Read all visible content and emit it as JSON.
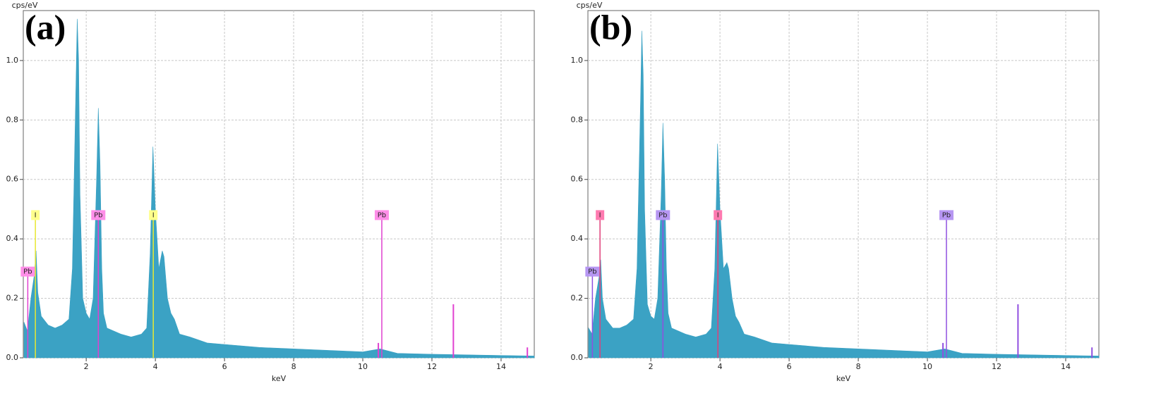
{
  "chart_data": [
    {
      "type": "area",
      "panel_label": "(a)",
      "y_label": "cps/eV",
      "x_label": "keV",
      "color": "#3ba2c4",
      "grid": true,
      "xlim": [
        0.18,
        14.96
      ],
      "ylim": [
        0,
        1.168
      ],
      "xticks": [
        2,
        4,
        6,
        8,
        10,
        12,
        14
      ],
      "yticks": [
        {
          "value": 0,
          "label": "0.0"
        },
        0.2,
        0.4,
        0.6,
        0.8,
        {
          "value": 1,
          "label": "1.0"
        }
      ],
      "x": [
        0.2,
        0.3,
        0.4,
        0.5,
        0.55,
        0.6,
        0.7,
        0.9,
        1.1,
        1.3,
        1.5,
        1.6,
        1.7,
        1.74,
        1.78,
        1.82,
        1.9,
        2.0,
        2.1,
        2.2,
        2.3,
        2.35,
        2.4,
        2.45,
        2.5,
        2.6,
        2.8,
        3.0,
        3.3,
        3.6,
        3.75,
        3.85,
        3.93,
        4.0,
        4.1,
        4.2,
        4.25,
        4.35,
        4.45,
        4.55,
        4.7,
        5.0,
        5.5,
        6,
        7,
        8,
        9,
        10,
        10.5,
        11,
        12,
        13,
        14,
        15
      ],
      "values": [
        0.12,
        0.09,
        0.2,
        0.28,
        0.36,
        0.22,
        0.14,
        0.11,
        0.1,
        0.11,
        0.13,
        0.3,
        0.9,
        1.14,
        1.0,
        0.55,
        0.2,
        0.15,
        0.13,
        0.2,
        0.6,
        0.84,
        0.65,
        0.3,
        0.15,
        0.1,
        0.09,
        0.08,
        0.07,
        0.08,
        0.1,
        0.35,
        0.71,
        0.5,
        0.3,
        0.36,
        0.34,
        0.2,
        0.15,
        0.13,
        0.08,
        0.07,
        0.05,
        0.045,
        0.035,
        0.03,
        0.025,
        0.02,
        0.03,
        0.015,
        0.012,
        0.01,
        0.008,
        0.006
      ],
      "markers": [
        {
          "label": "Pb",
          "energy": 0.31,
          "height": 0.29,
          "color": "#e040d0",
          "box_color": "#ff8ee8"
        },
        {
          "label": "I",
          "energy": 0.53,
          "height": 0.48,
          "color": "#e8e830",
          "box_color": "#ffff8c"
        },
        {
          "label": "Pb",
          "energy": 2.35,
          "height": 0.48,
          "color": "#e040d0",
          "box_color": "#ff8ee8"
        },
        {
          "label": "I",
          "energy": 3.94,
          "height": 0.48,
          "color": "#e8e830",
          "box_color": "#ffff8c"
        },
        {
          "label": "Pb",
          "energy": 10.55,
          "height": 0.48,
          "color": "#e040d0",
          "box_color": "#ff8ee8"
        }
      ],
      "minor_lines": {
        "color": "#e040d0",
        "energy": [
          10.45,
          12.62,
          14.76
        ],
        "height": [
          0.05,
          0.18,
          0.035
        ]
      }
    },
    {
      "type": "area",
      "panel_label": "(b)",
      "y_label": "cps/eV",
      "x_label": "keV",
      "color": "#3ba2c4",
      "grid": true,
      "xlim": [
        0.18,
        14.96
      ],
      "ylim": [
        0,
        1.168
      ],
      "xticks": [
        2,
        4,
        6,
        8,
        10,
        12,
        14
      ],
      "yticks": [
        {
          "value": 0,
          "label": "0.0"
        },
        0.2,
        0.4,
        0.6,
        0.8,
        {
          "value": 1,
          "label": "1.0"
        }
      ],
      "x": [
        0.2,
        0.3,
        0.4,
        0.5,
        0.55,
        0.6,
        0.7,
        0.9,
        1.1,
        1.3,
        1.5,
        1.6,
        1.7,
        1.74,
        1.78,
        1.82,
        1.9,
        2.0,
        2.1,
        2.2,
        2.3,
        2.35,
        2.4,
        2.45,
        2.5,
        2.6,
        2.8,
        3.0,
        3.3,
        3.6,
        3.75,
        3.85,
        3.93,
        4.0,
        4.1,
        4.2,
        4.25,
        4.35,
        4.45,
        4.55,
        4.7,
        5.0,
        5.5,
        6,
        7,
        8,
        9,
        10,
        10.5,
        11,
        12,
        13,
        14,
        15
      ],
      "values": [
        0.1,
        0.08,
        0.2,
        0.27,
        0.33,
        0.2,
        0.13,
        0.1,
        0.1,
        0.11,
        0.13,
        0.3,
        0.85,
        1.1,
        0.95,
        0.5,
        0.18,
        0.14,
        0.13,
        0.2,
        0.55,
        0.79,
        0.6,
        0.3,
        0.15,
        0.1,
        0.09,
        0.08,
        0.07,
        0.08,
        0.1,
        0.3,
        0.72,
        0.5,
        0.3,
        0.32,
        0.3,
        0.2,
        0.14,
        0.12,
        0.08,
        0.07,
        0.05,
        0.045,
        0.035,
        0.03,
        0.025,
        0.02,
        0.03,
        0.015,
        0.012,
        0.01,
        0.008,
        0.006
      ],
      "markers": [
        {
          "label": "Pb",
          "energy": 0.31,
          "height": 0.29,
          "color": "#9050e0",
          "box_color": "#b696f2"
        },
        {
          "label": "I",
          "energy": 0.53,
          "height": 0.48,
          "color": "#e0407a",
          "box_color": "#ff7ab0"
        },
        {
          "label": "Pb",
          "energy": 2.35,
          "height": 0.48,
          "color": "#9050e0",
          "box_color": "#b696f2"
        },
        {
          "label": "I",
          "energy": 3.94,
          "height": 0.48,
          "color": "#e0407a",
          "box_color": "#ff7ab0"
        },
        {
          "label": "Pb",
          "energy": 10.55,
          "height": 0.48,
          "color": "#9050e0",
          "box_color": "#b696f2"
        }
      ],
      "minor_lines": {
        "color": "#9050e0",
        "energy": [
          10.45,
          12.62,
          14.76
        ],
        "height": [
          0.05,
          0.18,
          0.035
        ]
      }
    }
  ]
}
